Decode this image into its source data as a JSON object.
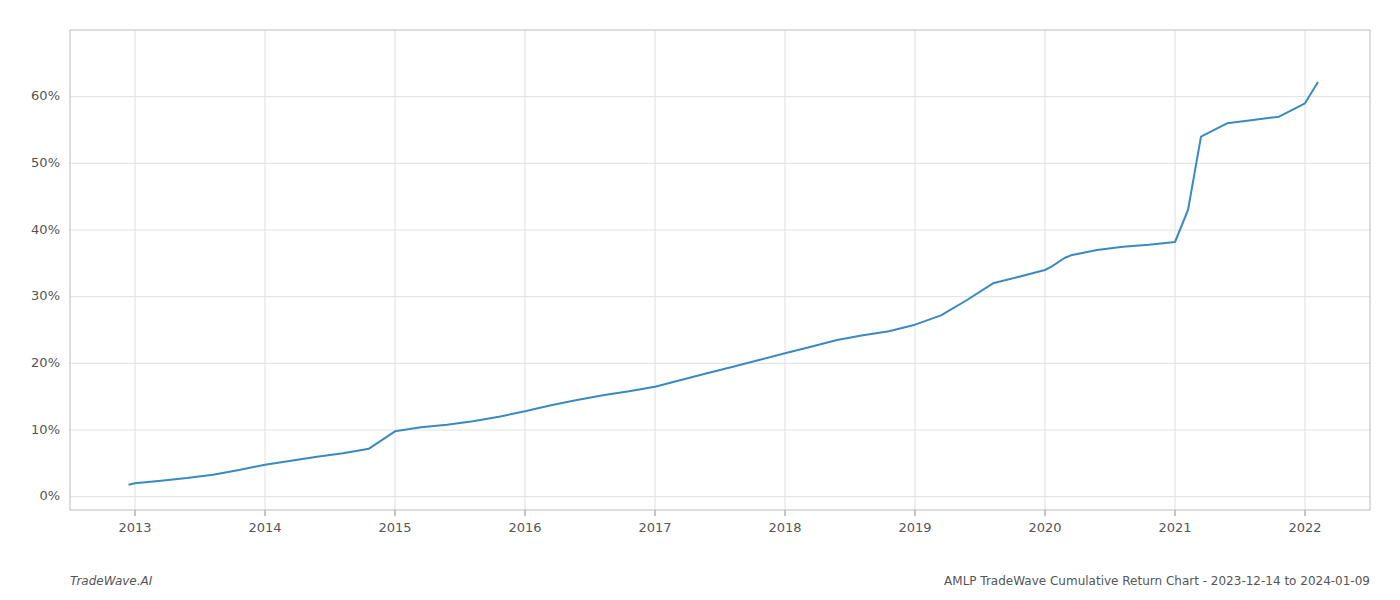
{
  "chart_data": {
    "type": "line",
    "annotations": [
      "TradeWave.AI",
      "AMLP TradeWave Cumulative Return Chart - 2023-12-14 to 2024-01-09"
    ],
    "x": [
      2012.95,
      2013.0,
      2013.2,
      2013.4,
      2013.6,
      2013.8,
      2014.0,
      2014.2,
      2014.4,
      2014.6,
      2014.8,
      2015.0,
      2015.2,
      2015.4,
      2015.6,
      2015.8,
      2016.0,
      2016.2,
      2016.4,
      2016.6,
      2016.8,
      2017.0,
      2017.2,
      2017.4,
      2017.6,
      2017.8,
      2018.0,
      2018.2,
      2018.4,
      2018.6,
      2018.8,
      2019.0,
      2019.2,
      2019.4,
      2019.6,
      2019.8,
      2020.0,
      2020.05,
      2020.15,
      2020.2,
      2020.4,
      2020.6,
      2020.8,
      2021.0,
      2021.1,
      2021.2,
      2021.4,
      2021.6,
      2021.8,
      2022.0,
      2022.1
    ],
    "values": [
      0.018,
      0.02,
      0.024,
      0.028,
      0.033,
      0.04,
      0.048,
      0.054,
      0.06,
      0.065,
      0.072,
      0.098,
      0.104,
      0.108,
      0.113,
      0.12,
      0.128,
      0.137,
      0.145,
      0.152,
      0.158,
      0.165,
      0.175,
      0.185,
      0.195,
      0.205,
      0.215,
      0.225,
      0.235,
      0.242,
      0.248,
      0.258,
      0.272,
      0.295,
      0.32,
      0.33,
      0.34,
      0.345,
      0.358,
      0.362,
      0.37,
      0.375,
      0.378,
      0.382,
      0.43,
      0.54,
      0.56,
      0.565,
      0.57,
      0.59,
      0.622
    ],
    "color": "#3a8abf",
    "xlim": [
      2012.5,
      2022.5
    ],
    "ylim": [
      -0.02,
      0.7
    ],
    "xticks": [
      2013,
      2014,
      2015,
      2016,
      2017,
      2018,
      2019,
      2020,
      2021,
      2022
    ],
    "yticks": [
      {
        "value": 0.0,
        "label": "0%"
      },
      {
        "value": 0.1,
        "label": "10%"
      },
      {
        "value": 0.2,
        "label": "20%"
      },
      {
        "value": 0.3,
        "label": "30%"
      },
      {
        "value": 0.4,
        "label": "40%"
      },
      {
        "value": 0.5,
        "label": "50%"
      },
      {
        "value": 0.6,
        "label": "60%"
      }
    ],
    "grid": true
  }
}
